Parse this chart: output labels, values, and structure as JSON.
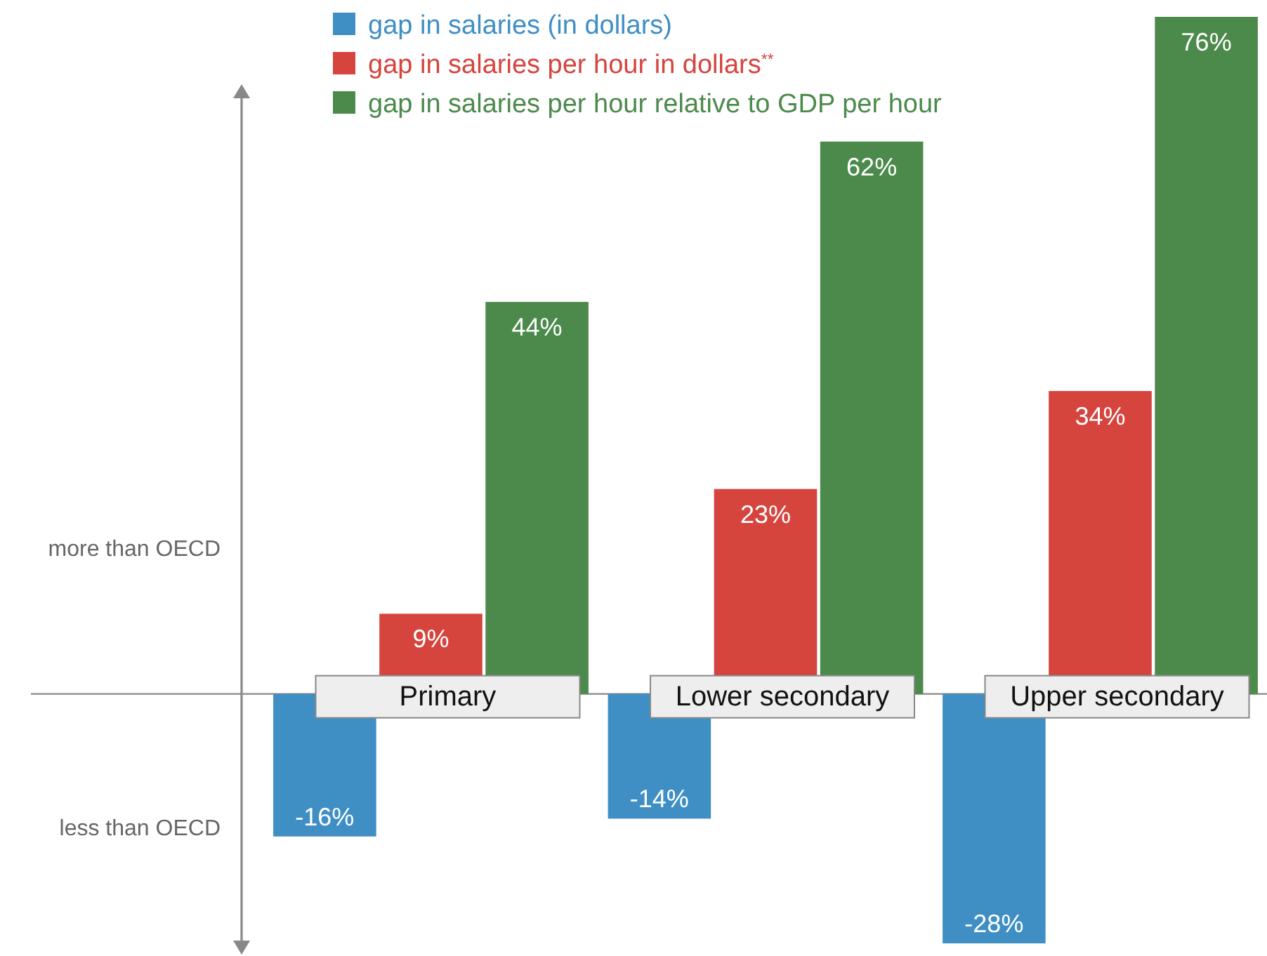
{
  "chart_data": {
    "type": "bar",
    "categories": [
      "Primary",
      "Lower secondary",
      "Upper secondary"
    ],
    "series": [
      {
        "name": "gap in salaries (in dollars)",
        "color": "#3f8fc5",
        "values": [
          -16,
          -14,
          -28
        ],
        "value_labels": [
          "-16%",
          "-14%",
          "-28%"
        ]
      },
      {
        "name": "gap in salaries per hour in dollars$^{**}$",
        "color": "#d6443e",
        "values": [
          9,
          23,
          34
        ],
        "value_labels": [
          "9%",
          "23%",
          "34%"
        ]
      },
      {
        "name": "gap in salaries per hour relative to GDP per hour",
        "color": "#4c8a4c",
        "values": [
          44,
          62,
          76
        ],
        "value_labels": [
          "44%",
          "62%",
          "76%"
        ]
      }
    ],
    "annotations": [
      "more than OECD",
      "less than OECD"
    ],
    "legend": "top"
  }
}
